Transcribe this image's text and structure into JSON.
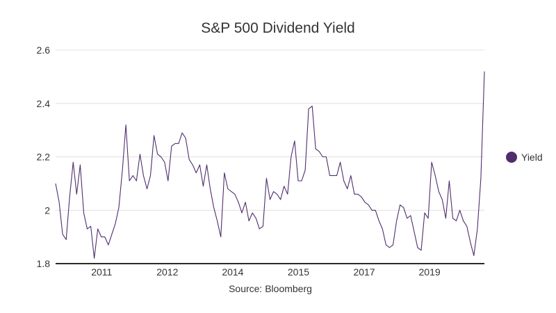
{
  "chart_data": {
    "type": "line",
    "title": "S&P 500 Dividend Yield",
    "source": "Source: Bloomberg",
    "xlabel": "",
    "ylabel": "",
    "ylim": [
      1.8,
      2.6
    ],
    "yticks": [
      1.8,
      2.0,
      2.2,
      2.4,
      2.6
    ],
    "ytick_labels": [
      "1.8",
      "2",
      "2.2",
      "2.4",
      "2.6"
    ],
    "xticks": [
      {
        "label": "2011",
        "index": 13.1
      },
      {
        "label": "2012",
        "index": 31.8
      },
      {
        "label": "2014",
        "index": 50.4
      },
      {
        "label": "2015",
        "index": 69.1
      },
      {
        "label": "2017",
        "index": 87.8
      },
      {
        "label": "2019",
        "index": 106.4
      }
    ],
    "grid": true,
    "legend": {
      "position": "right",
      "entries": [
        {
          "name": "Yield",
          "color": "#4f2d6e"
        }
      ]
    },
    "series": [
      {
        "name": "Yield",
        "color": "#4f2d6e",
        "values": [
          2.1,
          2.03,
          1.91,
          1.89,
          2.05,
          2.18,
          2.06,
          2.17,
          1.99,
          1.93,
          1.94,
          1.82,
          1.93,
          1.9,
          1.9,
          1.87,
          1.91,
          1.95,
          2.01,
          2.15,
          2.32,
          2.11,
          2.13,
          2.11,
          2.21,
          2.13,
          2.08,
          2.13,
          2.28,
          2.21,
          2.2,
          2.18,
          2.11,
          2.24,
          2.25,
          2.25,
          2.29,
          2.27,
          2.19,
          2.17,
          2.14,
          2.17,
          2.09,
          2.17,
          2.08,
          2.01,
          1.96,
          1.9,
          2.14,
          2.08,
          2.07,
          2.06,
          2.03,
          1.99,
          2.03,
          1.96,
          1.99,
          1.97,
          1.93,
          1.94,
          2.12,
          2.04,
          2.07,
          2.06,
          2.04,
          2.09,
          2.06,
          2.2,
          2.26,
          2.11,
          2.11,
          2.15,
          2.38,
          2.39,
          2.23,
          2.22,
          2.2,
          2.2,
          2.13,
          2.13,
          2.13,
          2.18,
          2.11,
          2.08,
          2.13,
          2.06,
          2.06,
          2.05,
          2.03,
          2.02,
          2.0,
          2.0,
          1.96,
          1.93,
          1.87,
          1.86,
          1.87,
          1.96,
          2.02,
          2.01,
          1.97,
          1.98,
          1.92,
          1.86,
          1.85,
          1.99,
          1.97,
          2.18,
          2.13,
          2.07,
          2.04,
          1.97,
          2.11,
          1.97,
          1.96,
          2.0,
          1.96,
          1.94,
          1.88,
          1.83,
          1.93,
          2.12,
          2.52
        ]
      }
    ]
  }
}
